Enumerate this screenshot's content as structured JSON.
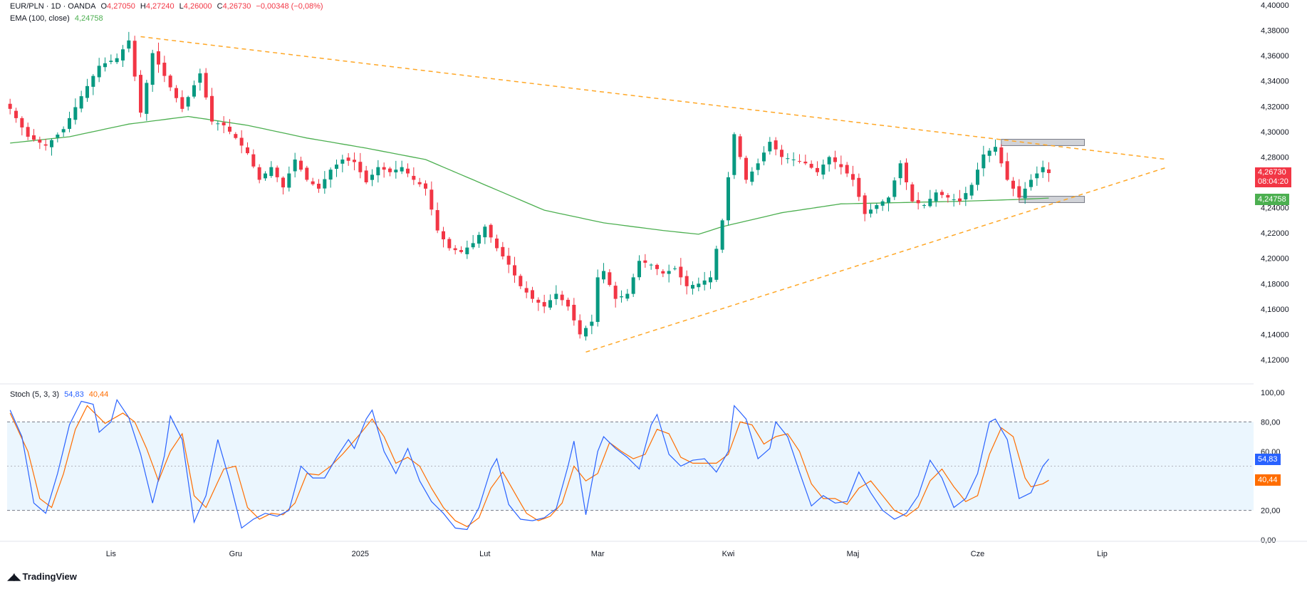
{
  "header": {
    "symbol": "EUR/PLN · 1D · OANDA",
    "o_label": "O",
    "o_value": "4,27050",
    "h_label": "H",
    "h_value": "4,27240",
    "l_label": "L",
    "l_value": "4,26000",
    "c_label": "C",
    "c_value": "4,26730",
    "change": "−0,00348 (−0,08%)",
    "ema_label": "EMA (100, close)",
    "ema_value": "4,24758",
    "stoch_label": "Stoch (5, 3, 3)",
    "stoch_k_value": "54,83",
    "stoch_d_value": "40,44"
  },
  "price_tag": {
    "price": "4,26730",
    "countdown": "08:04:20"
  },
  "ema_tag": "4,24758",
  "stoch_k_tag": "54,83",
  "stoch_d_tag": "40,44",
  "logo_text": "TradingView",
  "colors": {
    "up": "#089981",
    "down": "#f23645",
    "ema": "#4caf50",
    "trend": "#ffa726",
    "stoch_k": "#2962ff",
    "stoch_d": "#ff6d00",
    "stoch_band": "#e3f2fd"
  },
  "chart_data": {
    "type": "candlestick",
    "price_axis": {
      "min": 4.12,
      "max": 4.4,
      "ticks": [
        "4,12000",
        "4,14000",
        "4,16000",
        "4,18000",
        "4,20000",
        "4,22000",
        "4,24000",
        "4,26000",
        "4,28000",
        "4,30000",
        "4,32000",
        "4,34000",
        "4,36000",
        "4,38000",
        "4,40000"
      ]
    },
    "stoch_axis": {
      "min": 0,
      "max": 100,
      "ticks": [
        "0,00",
        "20,00",
        "40,00",
        "60,00",
        "80,00",
        "100,00"
      ],
      "band": [
        20,
        80
      ]
    },
    "x_labels": [
      "Lis",
      "Gru",
      "2025",
      "Lut",
      "Mar",
      "Kwi",
      "Maj",
      "Cze",
      "Lip"
    ],
    "x_label_index": [
      17,
      38,
      59,
      80,
      99,
      121,
      142,
      163,
      184
    ],
    "last_bar_index": 175,
    "total_slots": 210,
    "close_anchors": [
      [
        0,
        4.318
      ],
      [
        3,
        4.296
      ],
      [
        6,
        4.289
      ],
      [
        9,
        4.302
      ],
      [
        12,
        4.328
      ],
      [
        15,
        4.352
      ],
      [
        18,
        4.358
      ],
      [
        20,
        4.372
      ],
      [
        22,
        4.315
      ],
      [
        24,
        4.362
      ],
      [
        27,
        4.335
      ],
      [
        29,
        4.318
      ],
      [
        32,
        4.346
      ],
      [
        34,
        4.308
      ],
      [
        36,
        4.305
      ],
      [
        38,
        4.295
      ],
      [
        40,
        4.283
      ],
      [
        42,
        4.262
      ],
      [
        44,
        4.272
      ],
      [
        46,
        4.256
      ],
      [
        48,
        4.278
      ],
      [
        50,
        4.262
      ],
      [
        52,
        4.255
      ],
      [
        54,
        4.27
      ],
      [
        56,
        4.278
      ],
      [
        58,
        4.276
      ],
      [
        60,
        4.26
      ],
      [
        62,
        4.272
      ],
      [
        64,
        4.268
      ],
      [
        66,
        4.272
      ],
      [
        68,
        4.262
      ],
      [
        70,
        4.255
      ],
      [
        72,
        4.222
      ],
      [
        74,
        4.208
      ],
      [
        76,
        4.205
      ],
      [
        78,
        4.212
      ],
      [
        80,
        4.225
      ],
      [
        82,
        4.208
      ],
      [
        84,
        4.195
      ],
      [
        86,
        4.178
      ],
      [
        88,
        4.168
      ],
      [
        90,
        4.162
      ],
      [
        92,
        4.172
      ],
      [
        94,
        4.162
      ],
      [
        96,
        4.14
      ],
      [
        98,
        4.15
      ],
      [
        99,
        4.185
      ],
      [
        100,
        4.19
      ],
      [
        102,
        4.168
      ],
      [
        104,
        4.172
      ],
      [
        106,
        4.198
      ],
      [
        108,
        4.195
      ],
      [
        110,
        4.188
      ],
      [
        112,
        4.192
      ],
      [
        114,
        4.178
      ],
      [
        116,
        4.18
      ],
      [
        118,
        4.185
      ],
      [
        120,
        4.23
      ],
      [
        122,
        4.298
      ],
      [
        124,
        4.262
      ],
      [
        126,
        4.275
      ],
      [
        128,
        4.292
      ],
      [
        130,
        4.28
      ],
      [
        132,
        4.278
      ],
      [
        134,
        4.275
      ],
      [
        136,
        4.268
      ],
      [
        138,
        4.28
      ],
      [
        140,
        4.272
      ],
      [
        142,
        4.262
      ],
      [
        144,
        4.235
      ],
      [
        146,
        4.242
      ],
      [
        148,
        4.248
      ],
      [
        150,
        4.275
      ],
      [
        152,
        4.245
      ],
      [
        154,
        4.242
      ],
      [
        156,
        4.252
      ],
      [
        158,
        4.248
      ],
      [
        160,
        4.245
      ],
      [
        162,
        4.258
      ],
      [
        164,
        4.282
      ],
      [
        166,
        4.288
      ],
      [
        168,
        4.262
      ],
      [
        170,
        4.248
      ],
      [
        172,
        4.262
      ],
      [
        174,
        4.272
      ],
      [
        175,
        4.2673
      ]
    ],
    "ema_anchors": [
      [
        0,
        4.291
      ],
      [
        10,
        4.296
      ],
      [
        20,
        4.306
      ],
      [
        30,
        4.312
      ],
      [
        40,
        4.305
      ],
      [
        50,
        4.295
      ],
      [
        60,
        4.287
      ],
      [
        70,
        4.278
      ],
      [
        80,
        4.258
      ],
      [
        90,
        4.238
      ],
      [
        100,
        4.228
      ],
      [
        110,
        4.222
      ],
      [
        116,
        4.219
      ],
      [
        120,
        4.225
      ],
      [
        130,
        4.236
      ],
      [
        140,
        4.243
      ],
      [
        150,
        4.244
      ],
      [
        160,
        4.245
      ],
      [
        170,
        4.2465
      ],
      [
        175,
        4.24758
      ]
    ],
    "trendlines": [
      {
        "from": [
          22,
          4.375
        ],
        "to": [
          195,
          4.278
        ]
      },
      {
        "from": [
          97,
          4.126
        ],
        "to": [
          195,
          4.272
        ]
      }
    ],
    "zones": [
      {
        "from": 167,
        "to": 181,
        "top": 4.294,
        "bottom": 4.289
      },
      {
        "from": 170,
        "to": 181,
        "top": 4.249,
        "bottom": 4.244
      }
    ],
    "stoch_k_anchors": [
      [
        0,
        88
      ],
      [
        2,
        70
      ],
      [
        4,
        25
      ],
      [
        6,
        18
      ],
      [
        8,
        45
      ],
      [
        10,
        78
      ],
      [
        12,
        94
      ],
      [
        14,
        92
      ],
      [
        15,
        73
      ],
      [
        17,
        80
      ],
      [
        18,
        95
      ],
      [
        20,
        83
      ],
      [
        22,
        58
      ],
      [
        24,
        25
      ],
      [
        26,
        57
      ],
      [
        27,
        84
      ],
      [
        29,
        68
      ],
      [
        31,
        12
      ],
      [
        33,
        30
      ],
      [
        35,
        68
      ],
      [
        37,
        40
      ],
      [
        39,
        8
      ],
      [
        41,
        14
      ],
      [
        43,
        18
      ],
      [
        45,
        16
      ],
      [
        47,
        20
      ],
      [
        49,
        50
      ],
      [
        51,
        42
      ],
      [
        53,
        42
      ],
      [
        55,
        56
      ],
      [
        57,
        68
      ],
      [
        58,
        62
      ],
      [
        60,
        82
      ],
      [
        61,
        88
      ],
      [
        63,
        60
      ],
      [
        65,
        45
      ],
      [
        67,
        62
      ],
      [
        69,
        40
      ],
      [
        71,
        26
      ],
      [
        73,
        18
      ],
      [
        75,
        8
      ],
      [
        77,
        7
      ],
      [
        79,
        22
      ],
      [
        81,
        48
      ],
      [
        82,
        55
      ],
      [
        84,
        24
      ],
      [
        86,
        14
      ],
      [
        88,
        13
      ],
      [
        90,
        15
      ],
      [
        92,
        21
      ],
      [
        94,
        50
      ],
      [
        95,
        67
      ],
      [
        97,
        17
      ],
      [
        99,
        60
      ],
      [
        100,
        70
      ],
      [
        102,
        62
      ],
      [
        104,
        56
      ],
      [
        106,
        48
      ],
      [
        108,
        78
      ],
      [
        109,
        85
      ],
      [
        111,
        58
      ],
      [
        113,
        50
      ],
      [
        115,
        54
      ],
      [
        117,
        55
      ],
      [
        119,
        46
      ],
      [
        121,
        60
      ],
      [
        122,
        91
      ],
      [
        124,
        82
      ],
      [
        126,
        55
      ],
      [
        128,
        62
      ],
      [
        129,
        80
      ],
      [
        131,
        70
      ],
      [
        133,
        46
      ],
      [
        135,
        23
      ],
      [
        137,
        30
      ],
      [
        139,
        25
      ],
      [
        141,
        26
      ],
      [
        143,
        46
      ],
      [
        145,
        32
      ],
      [
        147,
        20
      ],
      [
        149,
        14
      ],
      [
        151,
        18
      ],
      [
        153,
        30
      ],
      [
        155,
        54
      ],
      [
        157,
        42
      ],
      [
        159,
        22
      ],
      [
        161,
        28
      ],
      [
        163,
        45
      ],
      [
        165,
        80
      ],
      [
        166,
        82
      ],
      [
        168,
        68
      ],
      [
        170,
        28
      ],
      [
        172,
        32
      ],
      [
        174,
        50
      ],
      [
        175,
        54.83
      ]
    ],
    "stoch_d_anchors": [
      [
        0,
        86
      ],
      [
        3,
        60
      ],
      [
        5,
        28
      ],
      [
        7,
        22
      ],
      [
        9,
        45
      ],
      [
        11,
        75
      ],
      [
        13,
        91
      ],
      [
        16,
        79
      ],
      [
        19,
        86
      ],
      [
        21,
        80
      ],
      [
        23,
        62
      ],
      [
        25,
        40
      ],
      [
        27,
        60
      ],
      [
        29,
        72
      ],
      [
        31,
        30
      ],
      [
        33,
        22
      ],
      [
        36,
        48
      ],
      [
        38,
        50
      ],
      [
        40,
        22
      ],
      [
        42,
        14
      ],
      [
        44,
        18
      ],
      [
        46,
        17
      ],
      [
        48,
        25
      ],
      [
        50,
        45
      ],
      [
        52,
        44
      ],
      [
        54,
        50
      ],
      [
        56,
        58
      ],
      [
        59,
        72
      ],
      [
        61,
        82
      ],
      [
        63,
        70
      ],
      [
        65,
        52
      ],
      [
        67,
        56
      ],
      [
        69,
        50
      ],
      [
        71,
        35
      ],
      [
        73,
        22
      ],
      [
        75,
        13
      ],
      [
        77,
        9
      ],
      [
        79,
        15
      ],
      [
        81,
        35
      ],
      [
        83,
        46
      ],
      [
        85,
        32
      ],
      [
        87,
        18
      ],
      [
        89,
        13
      ],
      [
        91,
        16
      ],
      [
        93,
        25
      ],
      [
        95,
        50
      ],
      [
        97,
        40
      ],
      [
        99,
        45
      ],
      [
        101,
        66
      ],
      [
        103,
        60
      ],
      [
        105,
        55
      ],
      [
        107,
        58
      ],
      [
        109,
        75
      ],
      [
        111,
        72
      ],
      [
        113,
        56
      ],
      [
        115,
        52
      ],
      [
        117,
        52
      ],
      [
        119,
        52
      ],
      [
        121,
        58
      ],
      [
        123,
        80
      ],
      [
        125,
        78
      ],
      [
        127,
        65
      ],
      [
        129,
        70
      ],
      [
        131,
        72
      ],
      [
        133,
        60
      ],
      [
        135,
        38
      ],
      [
        137,
        28
      ],
      [
        139,
        28
      ],
      [
        141,
        24
      ],
      [
        143,
        35
      ],
      [
        145,
        40
      ],
      [
        147,
        30
      ],
      [
        149,
        20
      ],
      [
        151,
        16
      ],
      [
        153,
        22
      ],
      [
        155,
        40
      ],
      [
        157,
        48
      ],
      [
        159,
        36
      ],
      [
        161,
        26
      ],
      [
        163,
        30
      ],
      [
        165,
        58
      ],
      [
        167,
        76
      ],
      [
        169,
        70
      ],
      [
        171,
        42
      ],
      [
        172,
        36
      ],
      [
        174,
        38
      ],
      [
        175,
        40.44
      ]
    ]
  }
}
